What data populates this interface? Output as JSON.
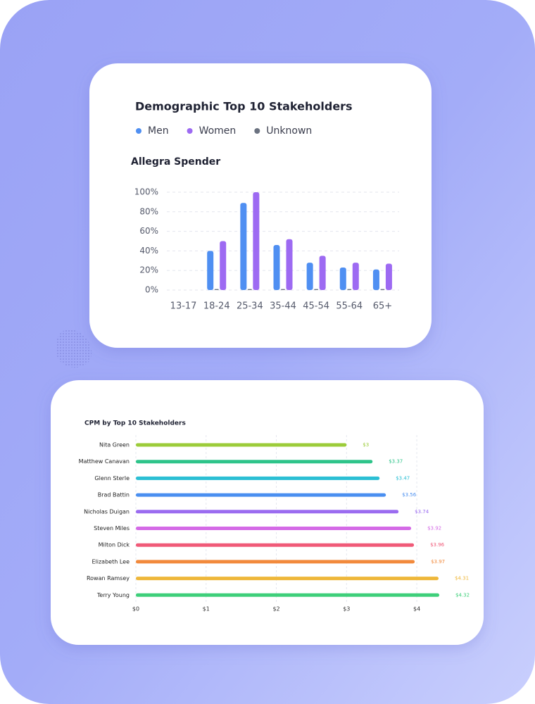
{
  "chart_data": [
    {
      "type": "bar",
      "title": "Demographic Top 10 Stakeholders",
      "subtitle": "Allegra Spender",
      "categories": [
        "13-17",
        "18-24",
        "25-34",
        "35-44",
        "45-54",
        "55-64",
        "65+"
      ],
      "series": [
        {
          "name": "Men",
          "color": "#4f8ff2",
          "values": [
            0,
            40,
            89,
            46,
            28,
            23,
            21
          ]
        },
        {
          "name": "Women",
          "color": "#9d6af2",
          "values": [
            0,
            50,
            100,
            52,
            35,
            28,
            27
          ]
        },
        {
          "name": "Unknown",
          "color": "#6b7280",
          "values": [
            0,
            1,
            1,
            1,
            1,
            1,
            1
          ]
        }
      ],
      "ylim": [
        0,
        100
      ],
      "yticks": [
        {
          "value": 0,
          "label": "0%"
        },
        {
          "value": 20,
          "label": "20%"
        },
        {
          "value": 40,
          "label": "40%"
        },
        {
          "value": 60,
          "label": "60%"
        },
        {
          "value": 80,
          "label": "80%"
        },
        {
          "value": 100,
          "label": "100%"
        }
      ],
      "grid": true,
      "legend": "top"
    },
    {
      "type": "barh",
      "title": "CPM by Top 10 Stakeholders",
      "categories": [
        "Nita Green",
        "Matthew Canavan",
        "Glenn Sterle",
        "Brad Battin",
        "Nicholas Duigan",
        "Steven Miles",
        "Milton Dick",
        "Elizabeth Lee",
        "Rowan Ramsey",
        "Terry Young"
      ],
      "values": [
        3,
        3.37,
        3.47,
        3.56,
        3.74,
        3.92,
        3.96,
        3.97,
        4.31,
        4.32
      ],
      "value_labels": [
        "$3",
        "$3.37",
        "$3.47",
        "$3.56",
        "$3.74",
        "$3.92",
        "$3.96",
        "$3.97",
        "$4.31",
        "$4.32"
      ],
      "colors": [
        "#9ccc3a",
        "#2ec48a",
        "#2bbfd4",
        "#4a8ff0",
        "#9b6cf0",
        "#d46ae6",
        "#f05a78",
        "#f28a3c",
        "#eeb73a",
        "#3ecf7a"
      ],
      "xlim": [
        0,
        4.35
      ],
      "xticks": [
        {
          "value": 0,
          "label": "$0"
        },
        {
          "value": 1,
          "label": "$1"
        },
        {
          "value": 2,
          "label": "$2"
        },
        {
          "value": 3,
          "label": "$3"
        },
        {
          "value": 4,
          "label": "$4"
        }
      ],
      "grid": true
    }
  ]
}
